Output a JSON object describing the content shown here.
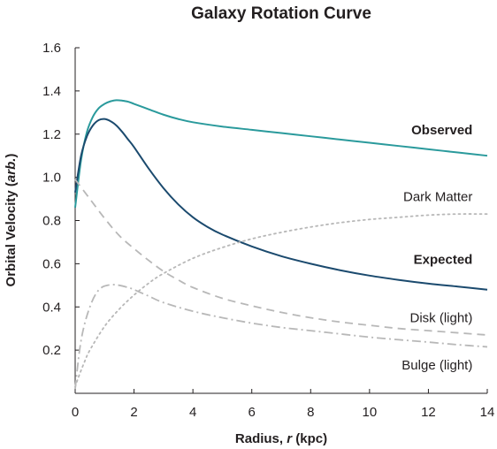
{
  "chart_data": {
    "type": "line",
    "title": "Galaxy Rotation Curve",
    "xlabel": {
      "prefix": "Radius, ",
      "var": "r",
      "suffix": " (kpc)"
    },
    "ylabel": {
      "prefix": "Orbital Velocity (",
      "var": "arb.",
      "suffix": ")"
    },
    "xlim": [
      0,
      14
    ],
    "ylim": [
      0,
      1.6
    ],
    "x_ticks": [
      {
        "value": 0,
        "label": "0"
      },
      {
        "value": 2,
        "label": "2"
      },
      {
        "value": 4,
        "label": "4"
      },
      {
        "value": 6,
        "label": "6"
      },
      {
        "value": 8,
        "label": "8"
      },
      {
        "value": 10,
        "label": "10"
      },
      {
        "value": 12,
        "label": "12"
      },
      {
        "value": 14,
        "label": "14"
      }
    ],
    "y_ticks": [
      {
        "value": 0.2,
        "label": "0.2"
      },
      {
        "value": 0.4,
        "label": "0.4"
      },
      {
        "value": 0.6,
        "label": "0.6"
      },
      {
        "value": 0.8,
        "label": "0.8"
      },
      {
        "value": 1.0,
        "label": "1.0"
      },
      {
        "value": 1.2,
        "label": "1.2"
      },
      {
        "value": 1.4,
        "label": "1.4"
      },
      {
        "value": 1.6,
        "label": "1.6"
      }
    ],
    "grid": false,
    "series": [
      {
        "name": "Observed",
        "color": "#2a9a9c",
        "style": "solid",
        "label_bold": true,
        "label_anchor": {
          "x": 13.5,
          "y": 1.2
        },
        "x": [
          0,
          0.2,
          0.4,
          0.6,
          0.8,
          1.0,
          1.2,
          1.4,
          1.6,
          1.8,
          2.0,
          2.5,
          3.0,
          3.5,
          4.0,
          5.0,
          6.0,
          7.0,
          8.0,
          9.0,
          10.0,
          11.0,
          12.0,
          13.0,
          14.0
        ],
        "y": [
          0.86,
          1.08,
          1.21,
          1.28,
          1.32,
          1.34,
          1.352,
          1.357,
          1.355,
          1.35,
          1.34,
          1.315,
          1.29,
          1.27,
          1.255,
          1.235,
          1.22,
          1.205,
          1.19,
          1.175,
          1.16,
          1.145,
          1.13,
          1.115,
          1.1
        ]
      },
      {
        "name": "Expected",
        "color": "#1b4a6e",
        "style": "solid",
        "label_bold": true,
        "label_anchor": {
          "x": 13.5,
          "y": 0.6
        },
        "x": [
          0,
          0.2,
          0.4,
          0.6,
          0.8,
          1.0,
          1.2,
          1.4,
          1.6,
          1.8,
          2.0,
          2.5,
          3.0,
          3.5,
          4.0,
          4.5,
          5.0,
          6.0,
          7.0,
          8.0,
          9.0,
          10.0,
          11.0,
          12.0,
          13.0,
          14.0
        ],
        "y": [
          0.93,
          1.1,
          1.19,
          1.24,
          1.265,
          1.27,
          1.26,
          1.24,
          1.21,
          1.175,
          1.14,
          1.04,
          0.95,
          0.875,
          0.815,
          0.77,
          0.735,
          0.68,
          0.635,
          0.6,
          0.57,
          0.545,
          0.525,
          0.508,
          0.494,
          0.48
        ]
      },
      {
        "name": "Dark Matter",
        "color": "#b8b8b8",
        "style": "dotted",
        "label_bold": false,
        "label_anchor": {
          "x": 13.5,
          "y": 0.89
        },
        "x": [
          0,
          0.1,
          0.3,
          0.5,
          1.0,
          1.5,
          2.0,
          2.5,
          3.0,
          4.0,
          5.0,
          6.0,
          7.0,
          8.0,
          9.0,
          10.0,
          11.0,
          12.0,
          13.0,
          14.0
        ],
        "y": [
          0.03,
          0.07,
          0.14,
          0.2,
          0.31,
          0.39,
          0.455,
          0.51,
          0.555,
          0.625,
          0.675,
          0.715,
          0.745,
          0.77,
          0.79,
          0.805,
          0.815,
          0.825,
          0.83,
          0.83
        ]
      },
      {
        "name": "Disk (light)",
        "color": "#b8b8b8",
        "style": "dashed",
        "label_bold": false,
        "label_anchor": {
          "x": 13.5,
          "y": 0.33
        },
        "x": [
          0,
          0.5,
          1.0,
          1.5,
          2.0,
          2.5,
          3.0,
          3.5,
          4.0,
          5.0,
          6.0,
          7.0,
          8.0,
          9.0,
          10.0,
          11.0,
          12.0,
          13.0,
          14.0
        ],
        "y": [
          0.99,
          0.9,
          0.81,
          0.73,
          0.67,
          0.615,
          0.565,
          0.525,
          0.49,
          0.44,
          0.405,
          0.375,
          0.35,
          0.33,
          0.315,
          0.3,
          0.29,
          0.28,
          0.27
        ]
      },
      {
        "name": "Bulge (light)",
        "color": "#b8b8b8",
        "style": "dashdot",
        "label_bold": false,
        "label_anchor": {
          "x": 13.5,
          "y": 0.11
        },
        "x": [
          0,
          0.15,
          0.3,
          0.5,
          0.7,
          0.9,
          1.1,
          1.3,
          1.5,
          1.8,
          2.0,
          2.5,
          3.0,
          4.0,
          5.0,
          6.0,
          7.0,
          8.0,
          9.0,
          10.0,
          11.0,
          12.0,
          13.0,
          14.0
        ],
        "y": [
          0.02,
          0.2,
          0.31,
          0.4,
          0.46,
          0.49,
          0.5,
          0.503,
          0.5,
          0.49,
          0.48,
          0.45,
          0.42,
          0.38,
          0.35,
          0.325,
          0.305,
          0.29,
          0.275,
          0.26,
          0.248,
          0.237,
          0.225,
          0.215
        ]
      }
    ]
  }
}
